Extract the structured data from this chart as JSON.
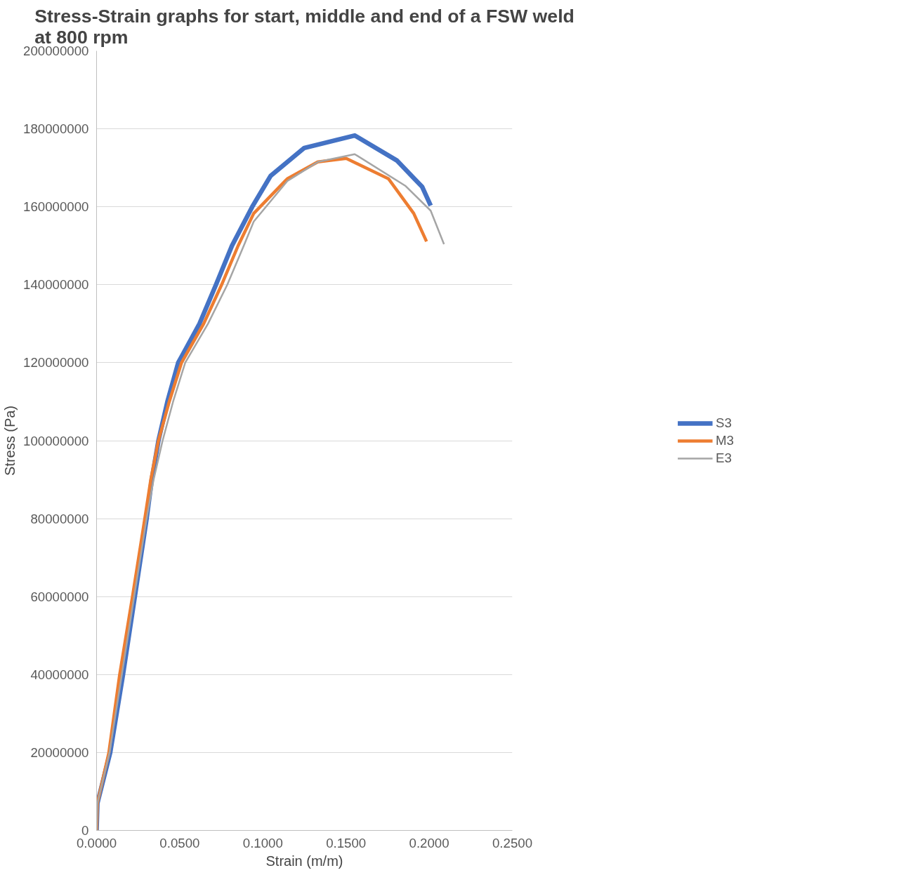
{
  "chart_data": {
    "type": "line",
    "title": "Stress-Strain graphs for start, middle and end of a FSW weld at 800 rpm",
    "xlabel": "Strain (m/m)",
    "ylabel": "Stress (Pa)",
    "xlim": [
      0,
      0.25
    ],
    "ylim": [
      0,
      200000000
    ],
    "xticks": [
      {
        "value": 0,
        "label": "0.0000"
      },
      {
        "value": 0.05,
        "label": "0.0500"
      },
      {
        "value": 0.1,
        "label": "0.1000"
      },
      {
        "value": 0.15,
        "label": "0.1500"
      },
      {
        "value": 0.2,
        "label": "0.2000"
      },
      {
        "value": 0.25,
        "label": "0.2500"
      }
    ],
    "yticks": [
      0,
      20000000,
      40000000,
      60000000,
      80000000,
      100000000,
      120000000,
      140000000,
      160000000,
      180000000,
      200000000
    ],
    "grid": "y",
    "legend": "right",
    "marker": "none",
    "line_style": "solid",
    "series": [
      {
        "name": "S3",
        "color": "#4472c4",
        "x": [
          0,
          0.0005,
          0.0082,
          0.0159,
          0.023,
          0.0301,
          0.0332,
          0.0372,
          0.0426,
          0.0491,
          0.0619,
          0.0718,
          0.0814,
          0.0936,
          0.1046,
          0.1249,
          0.1552,
          0.1805,
          0.1958,
          0.2009
        ],
        "values": [
          0,
          7000000,
          20000000,
          40000000,
          60000000,
          80000000,
          90000000,
          100000000,
          110000000,
          120000000,
          130000000,
          140000000,
          150000000,
          160000000,
          167900000,
          175100000,
          178300000,
          171900000,
          165100000,
          160300000
        ]
      },
      {
        "name": "M3",
        "color": "#ed7d31",
        "x": [
          0,
          0.0005,
          0.0074,
          0.0139,
          0.0216,
          0.029,
          0.0326,
          0.0372,
          0.0437,
          0.0511,
          0.0644,
          0.0752,
          0.0851,
          0.0945,
          0.1147,
          0.133,
          0.1501,
          0.1755,
          0.1907,
          0.1984
        ],
        "values": [
          0,
          7000000,
          20000000,
          40000000,
          60000000,
          80000000,
          90000000,
          100000000,
          110000000,
          120000000,
          130000000,
          140000000,
          150000000,
          158300000,
          167200000,
          171500000,
          172400000,
          167200000,
          158300000,
          151100000
        ]
      },
      {
        "name": "E3",
        "color": "#a5a5a5",
        "x": [
          0,
          0.0005,
          0.0078,
          0.0152,
          0.0226,
          0.0301,
          0.0343,
          0.0397,
          0.046,
          0.0533,
          0.067,
          0.0786,
          0.0885,
          0.0945,
          0.1147,
          0.133,
          0.1552,
          0.1856,
          0.2009,
          0.2089
        ],
        "values": [
          0,
          7000000,
          20000000,
          40000000,
          60000000,
          80000000,
          90000000,
          100000000,
          110000000,
          120000000,
          130000000,
          140000000,
          150000000,
          156200000,
          166600000,
          171500000,
          173500000,
          165400000,
          159000000,
          150400000
        ]
      }
    ]
  }
}
